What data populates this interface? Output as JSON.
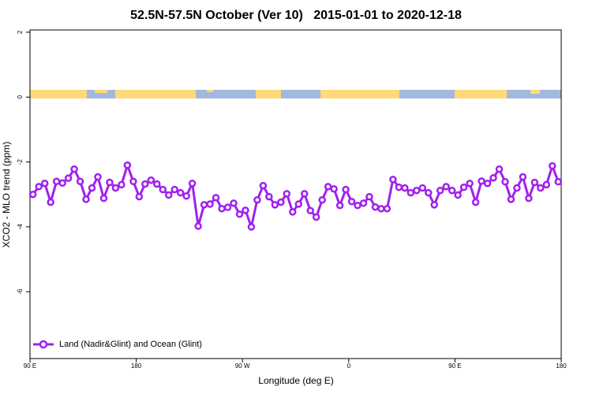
{
  "chart_data": {
    "type": "line",
    "title": "52.5N-57.5N October (Ver 10)   2015-01-01 to 2020-12-18",
    "x_label": "Longitude (deg E)",
    "y_label": "XCO2 - MLO trend (ppm)",
    "xlim": [
      90,
      540
    ],
    "ylim": [
      -8.06,
      2.07
    ],
    "xticks": [
      {
        "value": 90,
        "label": "90 E"
      },
      {
        "value": 180,
        "label": "180"
      },
      {
        "value": 270,
        "label": "90 W"
      },
      {
        "value": 360,
        "label": "0"
      },
      {
        "value": 450,
        "label": "90 E"
      },
      {
        "value": 540,
        "label": "180"
      }
    ],
    "yticks": [
      2,
      0,
      -2,
      -4,
      -6
    ],
    "legend": "bottomleft",
    "x": [
      92.5,
      97.5,
      102.5,
      107.5,
      112.5,
      117.5,
      122.5,
      127.5,
      132.5,
      137.5,
      142.5,
      147.5,
      152.5,
      157.5,
      162.5,
      167.5,
      172.5,
      177.5,
      182.5,
      187.5,
      192.5,
      197.5,
      202.5,
      207.5,
      212.5,
      217.5,
      222.5,
      227.5,
      232.5,
      237.5,
      242.5,
      247.5,
      252.5,
      257.5,
      262.5,
      267.5,
      272.5,
      277.5,
      282.5,
      287.5,
      292.5,
      297.5,
      302.5,
      307.5,
      312.5,
      317.5,
      322.5,
      327.5,
      332.5,
      337.5,
      342.5,
      347.5,
      352.5,
      357.5,
      362.5,
      367.5,
      372.5,
      377.5,
      382.5,
      387.5,
      392.5,
      397.5,
      402.5,
      407.5,
      412.5,
      417.5,
      422.5,
      427.5,
      432.5,
      437.5,
      442.5,
      447.5,
      452.5,
      457.5,
      462.5,
      467.5,
      472.5,
      477.5,
      482.5,
      487.5,
      492.5,
      497.5,
      502.5,
      507.5,
      512.5,
      517.5,
      522.5,
      527.5,
      532.5,
      537.5
    ],
    "series": [
      {
        "name": "Land (Nadir&Glint) and Ocean (Glint)",
        "color": "#a020f0",
        "values": [
          -3.0,
          -2.76,
          -2.66,
          -3.24,
          -2.6,
          -2.65,
          -2.5,
          -2.22,
          -2.6,
          -3.15,
          -2.8,
          -2.46,
          -3.12,
          -2.63,
          -2.8,
          -2.7,
          -2.1,
          -2.6,
          -3.07,
          -2.68,
          -2.56,
          -2.68,
          -2.85,
          -3.02,
          -2.85,
          -2.95,
          -3.05,
          -2.66,
          -3.98,
          -3.32,
          -3.3,
          -3.1,
          -3.44,
          -3.4,
          -3.27,
          -3.61,
          -3.49,
          -4.0,
          -3.17,
          -2.73,
          -3.07,
          -3.32,
          -3.24,
          -2.98,
          -3.54,
          -3.3,
          -2.98,
          -3.5,
          -3.7,
          -3.17,
          -2.76,
          -2.83,
          -3.34,
          -2.85,
          -3.22,
          -3.34,
          -3.27,
          -3.07,
          -3.39,
          -3.44,
          -3.44,
          -2.54,
          -2.78,
          -2.8,
          -2.95,
          -2.88,
          -2.8,
          -2.95,
          -3.32,
          -2.88,
          -2.76,
          -2.88,
          -3.02,
          -2.78,
          -2.66,
          -3.24,
          -2.59,
          -2.66,
          -2.49,
          -2.22,
          -2.61,
          -3.15,
          -2.8,
          -2.46,
          -3.12,
          -2.63,
          -2.8,
          -2.7,
          -2.12,
          -2.61
        ]
      }
    ]
  }
}
